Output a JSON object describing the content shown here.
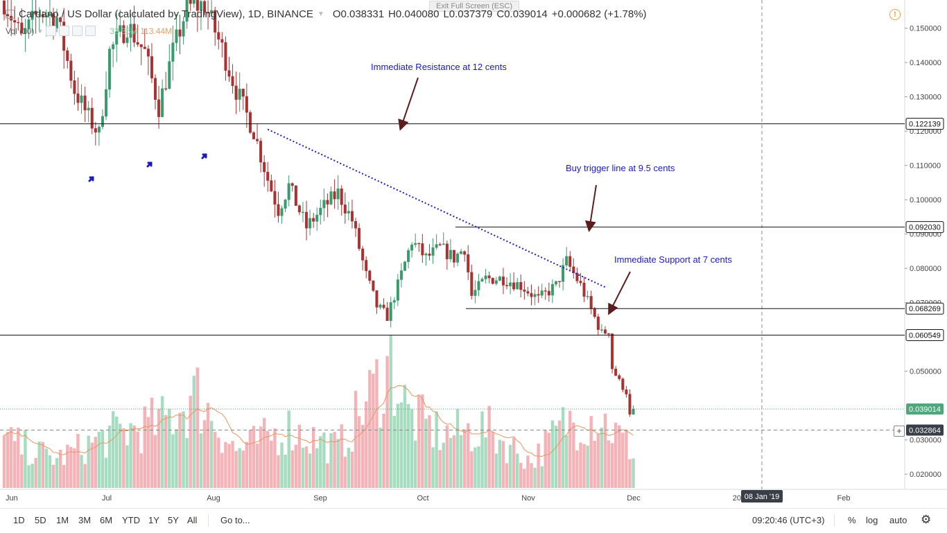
{
  "legend": {
    "title": "Cardano / US Dollar (calculated by TradingView), 1D, BINANCE",
    "open": "O0.038331",
    "high": "H0.040080",
    "low": "L0.037379",
    "close": "C0.039014",
    "change": "+0.000682 (+1.78%)",
    "vol_label": "Vol (10)",
    "vol_value": "33.35M",
    "vol_ma": "113.44M"
  },
  "exit_fullscreen": "Exit Full Screen (ESC)",
  "annotations": {
    "resistance": "Immediate Resistance at 12 cents",
    "buy_trigger": "Buy trigger line at 9.5 cents",
    "support": "Immediate Support at 7 cents"
  },
  "toolbar": {
    "ranges": [
      "1D",
      "5D",
      "1M",
      "3M",
      "6M",
      "YTD",
      "1Y",
      "5Y",
      "All"
    ],
    "goto": "Go to...",
    "clock": "09:20:46 (UTC+3)",
    "percent": "%",
    "log": "log",
    "auto": "auto"
  },
  "time_axis": {
    "labels": [
      "Jun",
      "Jul",
      "Aug",
      "Sep",
      "Oct",
      "Nov",
      "Dec",
      "2019",
      "Feb"
    ],
    "crosshair_date": "08 Jan '19"
  },
  "price_axis": {
    "ticks": [
      "0.150000",
      "0.140000",
      "0.130000",
      "0.120000",
      "0.110000",
      "0.100000",
      "0.090000",
      "0.080000",
      "0.070000",
      "0.050000",
      "0.030000",
      "0.020000"
    ],
    "level_tags": [
      "0.122139",
      "0.092030",
      "0.068269",
      "0.060549",
      "0.039014",
      "0.032864"
    ]
  },
  "colors": {
    "up": "#3a9a6e",
    "down": "#a83232",
    "vol_up": "#a6dcbf",
    "vol_down": "#f5b3b8",
    "annotation": "#1a1aba",
    "arrow": "#5a1c1c",
    "ma": "#e8955a"
  },
  "chart_data": {
    "type": "candlestick",
    "title": "Cardano / US Dollar (calculated by TradingView), 1D, BINANCE",
    "interval": "1D",
    "x_start": "2018-05-31",
    "ylim": [
      0.016,
      0.157
    ],
    "horizontal_levels": [
      0.122139,
      0.09203,
      0.068269,
      0.060549
    ],
    "last_price": 0.039014,
    "crosshair_price": 0.032864,
    "trendline": {
      "from": [
        "2018-08-14",
        0.1205
      ],
      "to": [
        "2018-11-18",
        0.0745
      ]
    },
    "close_anchors": [
      [
        "2018-05-31",
        0.158
      ],
      [
        "2018-06-05",
        0.147
      ],
      [
        "2018-06-10",
        0.155
      ],
      [
        "2018-06-15",
        0.153
      ],
      [
        "2018-06-20",
        0.132
      ],
      [
        "2018-06-24",
        0.124
      ],
      [
        "2018-06-27",
        0.119
      ],
      [
        "2018-06-30",
        0.143
      ],
      [
        "2018-07-05",
        0.151
      ],
      [
        "2018-07-10",
        0.143
      ],
      [
        "2018-07-14",
        0.127
      ],
      [
        "2018-07-18",
        0.143
      ],
      [
        "2018-07-22",
        0.156
      ],
      [
        "2018-07-27",
        0.157
      ],
      [
        "2018-08-01",
        0.144
      ],
      [
        "2018-08-05",
        0.132
      ],
      [
        "2018-08-10",
        0.12
      ],
      [
        "2018-08-14",
        0.106
      ],
      [
        "2018-08-17",
        0.097
      ],
      [
        "2018-08-20",
        0.104
      ],
      [
        "2018-08-25",
        0.092
      ],
      [
        "2018-08-30",
        0.098
      ],
      [
        "2018-09-03",
        0.102
      ],
      [
        "2018-09-07",
        0.094
      ],
      [
        "2018-09-11",
        0.078
      ],
      [
        "2018-09-14",
        0.069
      ],
      [
        "2018-09-17",
        0.066
      ],
      [
        "2018-09-20",
        0.075
      ],
      [
        "2018-09-24",
        0.088
      ],
      [
        "2018-09-28",
        0.083
      ],
      [
        "2018-10-02",
        0.086
      ],
      [
        "2018-10-06",
        0.083
      ],
      [
        "2018-10-09",
        0.086
      ],
      [
        "2018-10-11",
        0.072
      ],
      [
        "2018-10-15",
        0.077
      ],
      [
        "2018-10-20",
        0.077
      ],
      [
        "2018-10-25",
        0.075
      ],
      [
        "2018-10-30",
        0.071
      ],
      [
        "2018-11-04",
        0.075
      ],
      [
        "2018-11-07",
        0.082
      ],
      [
        "2018-11-11",
        0.075
      ],
      [
        "2018-11-14",
        0.068
      ],
      [
        "2018-11-17",
        0.061
      ],
      [
        "2018-11-19",
        0.062
      ],
      [
        "2018-11-20",
        0.051
      ],
      [
        "2018-11-22",
        0.047
      ],
      [
        "2018-11-24",
        0.044
      ],
      [
        "2018-11-25",
        0.037
      ],
      [
        "2018-11-26",
        0.039014
      ]
    ],
    "volume_anchors": [
      [
        "2018-05-31",
        36
      ],
      [
        "2018-06-15",
        22
      ],
      [
        "2018-06-30",
        40
      ],
      [
        "2018-07-15",
        50
      ],
      [
        "2018-07-25",
        70
      ],
      [
        "2018-08-05",
        28
      ],
      [
        "2018-08-20",
        45
      ],
      [
        "2018-09-03",
        30
      ],
      [
        "2018-09-10",
        60
      ],
      [
        "2018-09-18",
        95
      ],
      [
        "2018-09-23",
        55
      ],
      [
        "2018-10-03",
        40
      ],
      [
        "2018-10-15",
        45
      ],
      [
        "2018-10-28",
        20
      ],
      [
        "2018-11-07",
        50
      ],
      [
        "2018-11-16",
        55
      ],
      [
        "2018-11-26",
        28
      ]
    ]
  }
}
